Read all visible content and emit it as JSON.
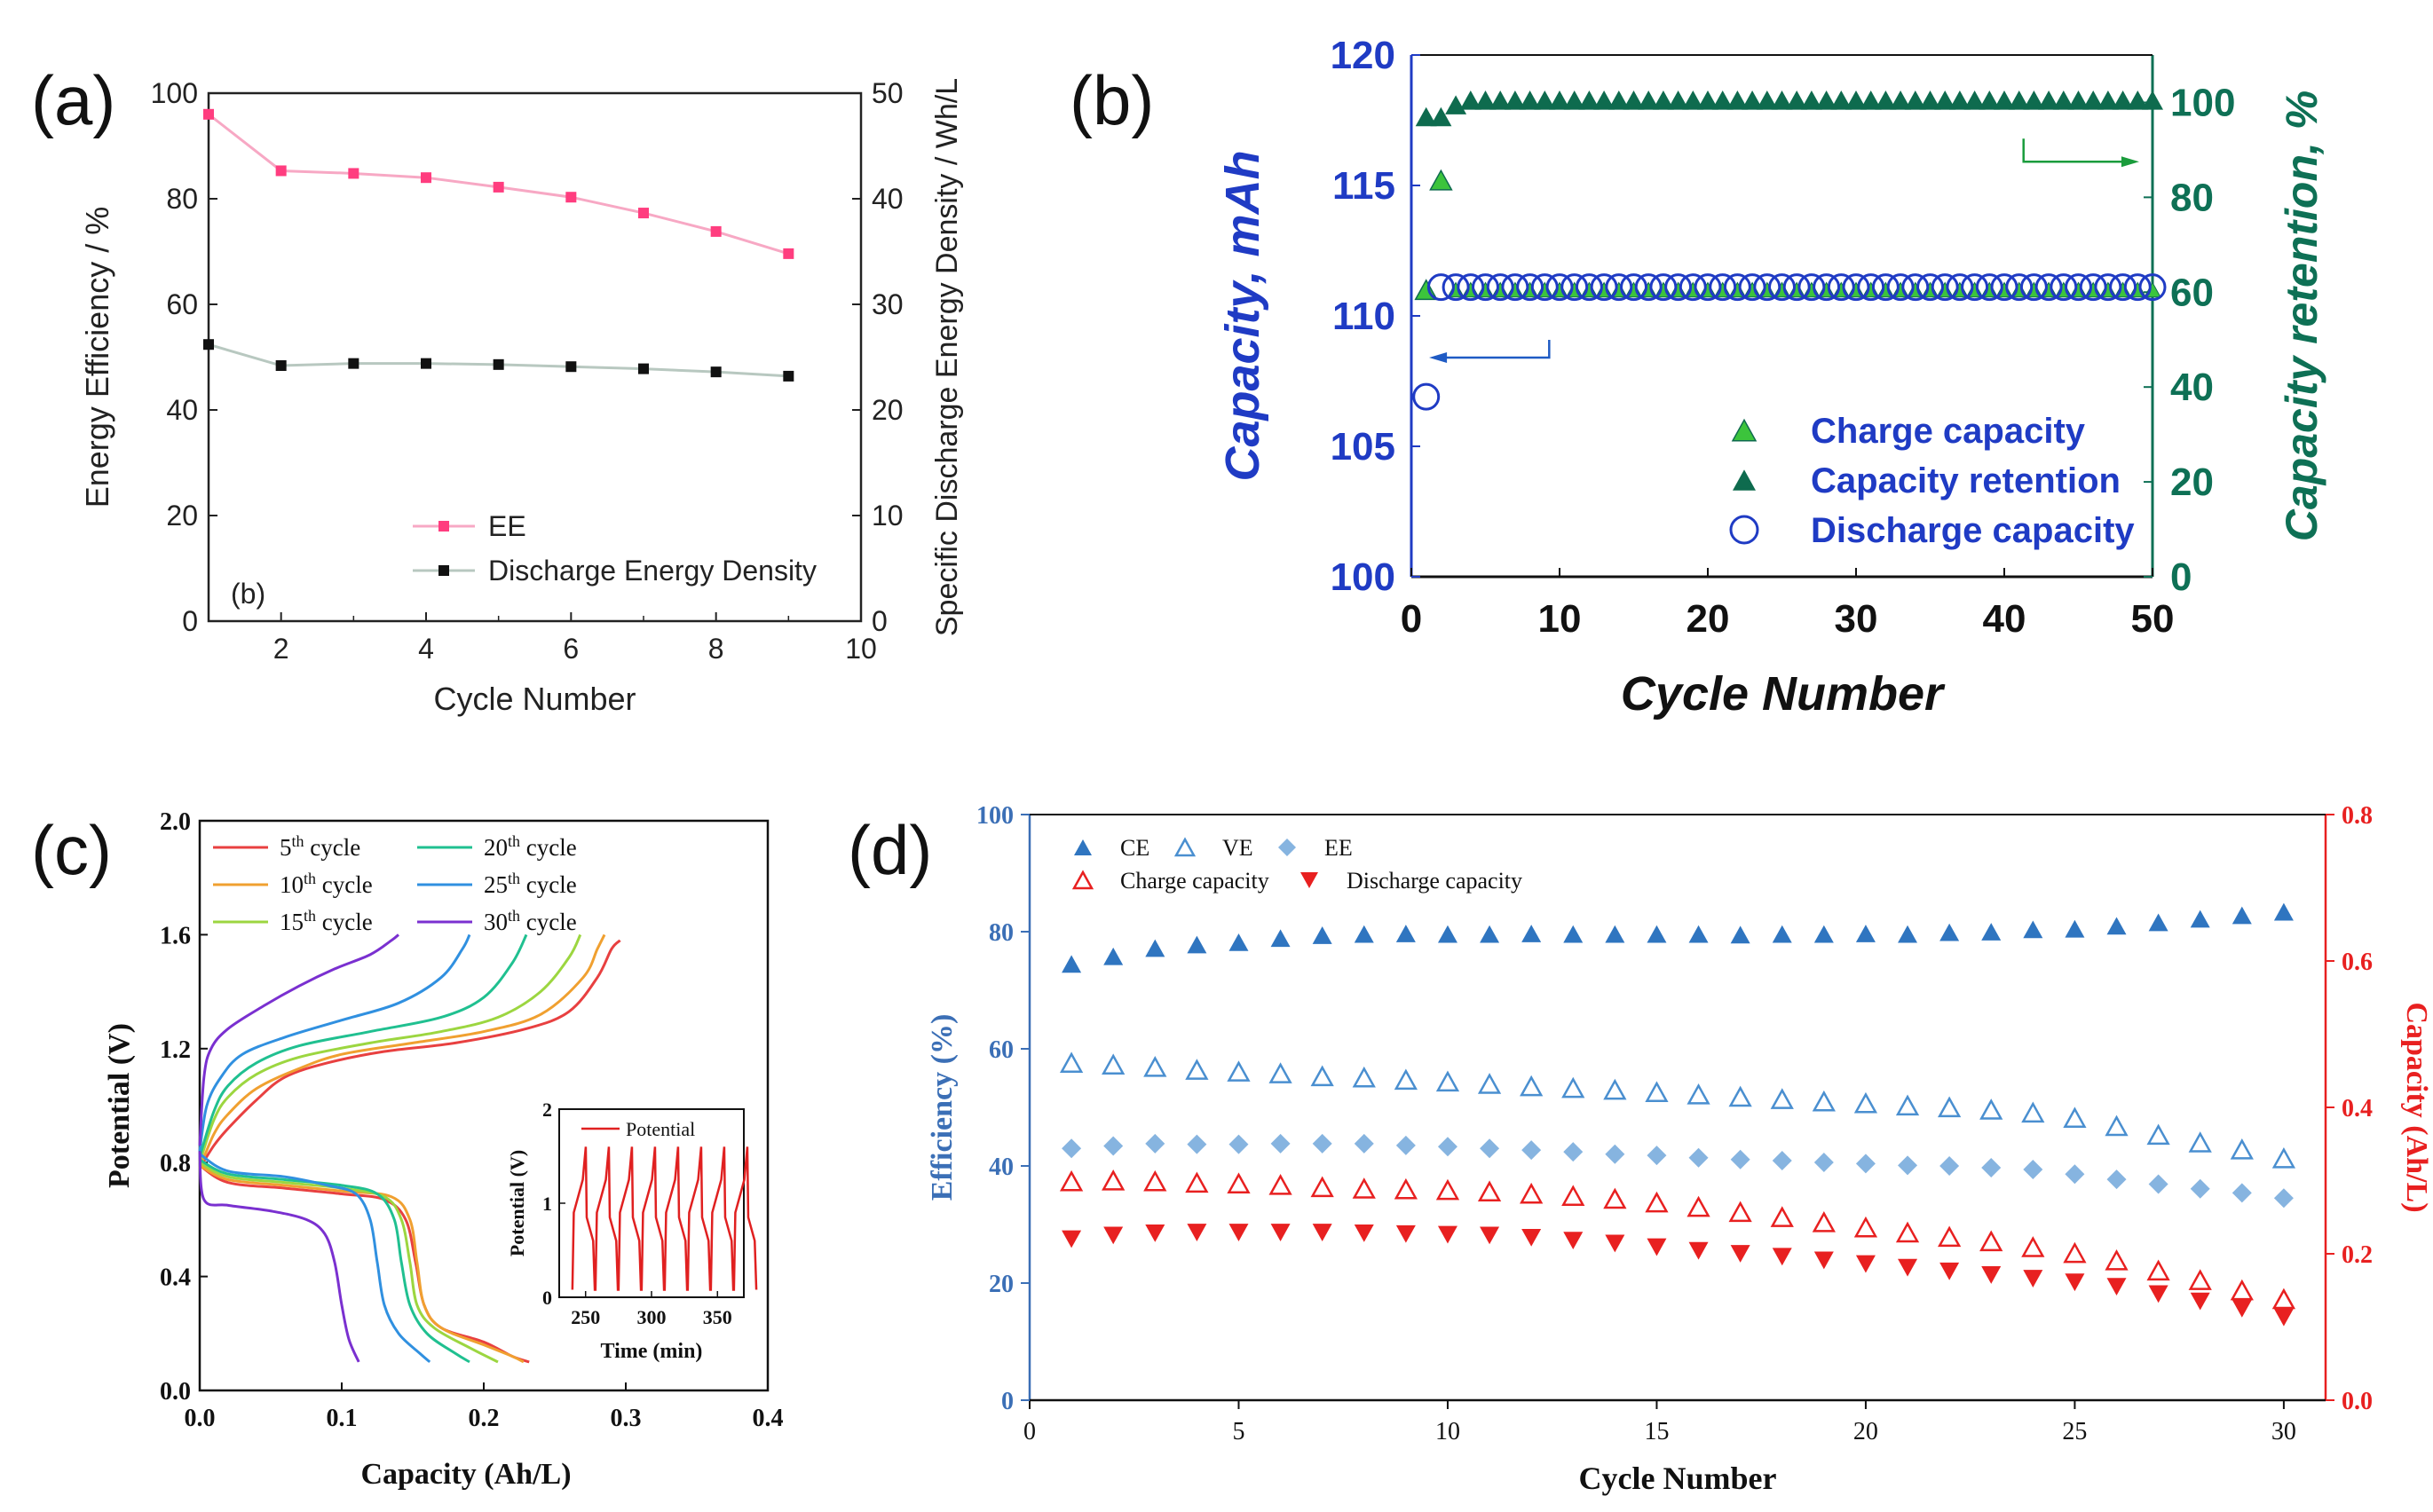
{
  "figure": {
    "panel_labels": [
      "(a)",
      "(b)",
      "(c)",
      "(d)"
    ]
  },
  "chart_data": [
    {
      "id": "a",
      "type": "line",
      "inner_label": "(b)",
      "xlabel": "Cycle Number",
      "ylabel": "Energy Efficiency / %",
      "y2label": "Specific Discharge Energy Density / Wh/L",
      "xlim": [
        1,
        10
      ],
      "ylim": [
        0,
        100
      ],
      "y2lim": [
        0,
        50
      ],
      "xticks": [
        2,
        4,
        6,
        8,
        10
      ],
      "yticks": [
        0,
        20,
        40,
        60,
        80,
        100
      ],
      "y2ticks": [
        0,
        10,
        20,
        30,
        40,
        50
      ],
      "series": [
        {
          "name": "EE",
          "axis": "left",
          "color": "#ff3d7f",
          "line_color": "#f7a8c4",
          "x": [
            1,
            2,
            3,
            4,
            5,
            6,
            7,
            8,
            9
          ],
          "values": [
            96,
            85.3,
            84.8,
            84,
            82.2,
            80.3,
            77.3,
            73.8,
            69.6
          ]
        },
        {
          "name": "Discharge Energy Density",
          "axis": "right",
          "color": "#111111",
          "line_color": "#b8c8c0",
          "x": [
            1,
            2,
            3,
            4,
            5,
            6,
            7,
            8,
            9
          ],
          "values": [
            26.2,
            24.2,
            24.4,
            24.4,
            24.3,
            24.1,
            23.9,
            23.6,
            23.2
          ]
        }
      ]
    },
    {
      "id": "b",
      "type": "scatter",
      "xlabel": "Cycle Number",
      "ylabel": "Capacity, mAh",
      "y2label": "Capacity retention, %",
      "xlim": [
        0,
        50
      ],
      "ylim": [
        100,
        120
      ],
      "y2lim": [
        0,
        110
      ],
      "xticks": [
        0,
        10,
        20,
        30,
        40,
        50
      ],
      "yticks": [
        100,
        105,
        110,
        115,
        120
      ],
      "y2ticks": [
        0,
        20,
        40,
        60,
        80,
        100
      ],
      "colors": {
        "left_axis": "#1f3bc4",
        "right_axis": "#0e7055",
        "charge": "#3cc43c",
        "retention": "#0e6b4e",
        "discharge": "#1f3bc4",
        "arrow_left": "#1f5bc4",
        "arrow_right": "#1a9c3c"
      },
      "series": [
        {
          "name": "Charge capacity",
          "marker": "triangle",
          "axis": "left",
          "points": [
            [
              1,
              111.0
            ],
            [
              2,
              115.2
            ]
          ]
        },
        {
          "name": "Capacity retention",
          "marker": "triangle-filled",
          "axis": "right",
          "x_start": 1,
          "x_end": 50,
          "first_values": [
            97,
            97,
            99.5
          ],
          "rest_value": 100.5
        },
        {
          "name": "Discharge capacity",
          "marker": "circle-open",
          "axis": "left",
          "first_points": [
            [
              1,
              106.9
            ],
            [
              2,
              111.1
            ]
          ],
          "x_start": 3,
          "x_end": 50,
          "rest_value": 111.1
        }
      ],
      "charge_rest": {
        "x_start": 3,
        "x_end": 50,
        "value": 111.0
      }
    },
    {
      "id": "c",
      "type": "line",
      "xlabel": "Capacity (Ah/L)",
      "ylabel": "Potential (V)",
      "xlim": [
        0,
        0.4
      ],
      "ylim": [
        0,
        2.0
      ],
      "xticks": [
        "0.0",
        "0.1",
        "0.2",
        "0.3",
        "0.4"
      ],
      "yticks": [
        "0.0",
        "0.4",
        "0.8",
        "1.2",
        "1.6",
        "2.0"
      ],
      "series": [
        {
          "name": "5th cycle",
          "base": "5",
          "sup": "th",
          "suffix": " cycle",
          "color": "#e84040",
          "charge": [
            [
              0,
              0.78
            ],
            [
              0.01,
              0.86
            ],
            [
              0.02,
              0.92
            ],
            [
              0.04,
              1.02
            ],
            [
              0.06,
              1.1
            ],
            [
              0.09,
              1.15
            ],
            [
              0.13,
              1.19
            ],
            [
              0.18,
              1.22
            ],
            [
              0.23,
              1.27
            ],
            [
              0.26,
              1.33
            ],
            [
              0.28,
              1.45
            ],
            [
              0.29,
              1.55
            ],
            [
              0.296,
              1.58
            ]
          ],
          "discharge": [
            [
              0,
              0.79
            ],
            [
              0.02,
              0.73
            ],
            [
              0.06,
              0.71
            ],
            [
              0.1,
              0.69
            ],
            [
              0.13,
              0.67
            ],
            [
              0.145,
              0.6
            ],
            [
              0.152,
              0.45
            ],
            [
              0.158,
              0.3
            ],
            [
              0.17,
              0.22
            ],
            [
              0.2,
              0.17
            ],
            [
              0.22,
              0.12
            ],
            [
              0.232,
              0.1
            ]
          ]
        },
        {
          "name": "10th cycle",
          "base": "10",
          "sup": "th",
          "suffix": " cycle",
          "color": "#f0a030",
          "charge": [
            [
              0,
              0.78
            ],
            [
              0.01,
              0.9
            ],
            [
              0.02,
              0.97
            ],
            [
              0.04,
              1.06
            ],
            [
              0.07,
              1.13
            ],
            [
              0.1,
              1.18
            ],
            [
              0.15,
              1.22
            ],
            [
              0.2,
              1.26
            ],
            [
              0.24,
              1.32
            ],
            [
              0.27,
              1.45
            ],
            [
              0.28,
              1.55
            ],
            [
              0.285,
              1.6
            ]
          ],
          "discharge": [
            [
              0,
              0.79
            ],
            [
              0.02,
              0.74
            ],
            [
              0.06,
              0.72
            ],
            [
              0.1,
              0.7
            ],
            [
              0.135,
              0.68
            ],
            [
              0.148,
              0.6
            ],
            [
              0.153,
              0.45
            ],
            [
              0.158,
              0.3
            ],
            [
              0.17,
              0.22
            ],
            [
              0.2,
              0.16
            ],
            [
              0.22,
              0.12
            ],
            [
              0.228,
              0.1
            ]
          ]
        },
        {
          "name": "15th cycle",
          "base": "15",
          "sup": "th",
          "suffix": " cycle",
          "color": "#9cd640",
          "charge": [
            [
              0,
              0.8
            ],
            [
              0.01,
              0.95
            ],
            [
              0.02,
              1.03
            ],
            [
              0.04,
              1.11
            ],
            [
              0.07,
              1.17
            ],
            [
              0.12,
              1.22
            ],
            [
              0.17,
              1.26
            ],
            [
              0.21,
              1.31
            ],
            [
              0.24,
              1.4
            ],
            [
              0.26,
              1.52
            ],
            [
              0.268,
              1.6
            ]
          ],
          "discharge": [
            [
              0,
              0.8
            ],
            [
              0.02,
              0.75
            ],
            [
              0.06,
              0.73
            ],
            [
              0.1,
              0.71
            ],
            [
              0.13,
              0.68
            ],
            [
              0.142,
              0.6
            ],
            [
              0.148,
              0.45
            ],
            [
              0.153,
              0.3
            ],
            [
              0.165,
              0.22
            ],
            [
              0.19,
              0.15
            ],
            [
              0.21,
              0.1
            ]
          ]
        },
        {
          "name": "20th cycle",
          "base": "20",
          "sup": "th",
          "suffix": " cycle",
          "color": "#20c090",
          "charge": [
            [
              0,
              0.82
            ],
            [
              0.01,
              0.98
            ],
            [
              0.02,
              1.07
            ],
            [
              0.04,
              1.15
            ],
            [
              0.07,
              1.21
            ],
            [
              0.12,
              1.26
            ],
            [
              0.17,
              1.31
            ],
            [
              0.2,
              1.38
            ],
            [
              0.22,
              1.5
            ],
            [
              0.23,
              1.6
            ]
          ],
          "discharge": [
            [
              0,
              0.81
            ],
            [
              0.02,
              0.76
            ],
            [
              0.06,
              0.74
            ],
            [
              0.1,
              0.72
            ],
            [
              0.125,
              0.69
            ],
            [
              0.137,
              0.6
            ],
            [
              0.142,
              0.45
            ],
            [
              0.148,
              0.3
            ],
            [
              0.16,
              0.2
            ],
            [
              0.18,
              0.13
            ],
            [
              0.19,
              0.1
            ]
          ]
        },
        {
          "name": "25th cycle",
          "base": "25",
          "sup": "th",
          "suffix": " cycle",
          "color": "#3090e0",
          "charge": [
            [
              0,
              0.84
            ],
            [
              0.005,
              1.0
            ],
            [
              0.015,
              1.1
            ],
            [
              0.03,
              1.18
            ],
            [
              0.06,
              1.24
            ],
            [
              0.1,
              1.3
            ],
            [
              0.14,
              1.36
            ],
            [
              0.17,
              1.45
            ],
            [
              0.185,
              1.55
            ],
            [
              0.19,
              1.6
            ]
          ],
          "discharge": [
            [
              0,
              0.83
            ],
            [
              0.02,
              0.77
            ],
            [
              0.06,
              0.75
            ],
            [
              0.09,
              0.72
            ],
            [
              0.11,
              0.69
            ],
            [
              0.12,
              0.6
            ],
            [
              0.125,
              0.45
            ],
            [
              0.13,
              0.3
            ],
            [
              0.14,
              0.2
            ],
            [
              0.155,
              0.13
            ],
            [
              0.162,
              0.1
            ]
          ]
        },
        {
          "name": "30th cycle",
          "base": "30",
          "sup": "th",
          "suffix": " cycle",
          "color": "#7a30d0",
          "charge": [
            [
              0,
              0.86
            ],
            [
              0.003,
              1.1
            ],
            [
              0.008,
              1.2
            ],
            [
              0.02,
              1.27
            ],
            [
              0.045,
              1.35
            ],
            [
              0.07,
              1.42
            ],
            [
              0.095,
              1.48
            ],
            [
              0.12,
              1.53
            ],
            [
              0.135,
              1.58
            ],
            [
              0.14,
              1.6
            ]
          ],
          "discharge": [
            [
              0,
              0.84
            ],
            [
              0.003,
              0.67
            ],
            [
              0.02,
              0.65
            ],
            [
              0.05,
              0.63
            ],
            [
              0.075,
              0.6
            ],
            [
              0.088,
              0.55
            ],
            [
              0.095,
              0.45
            ],
            [
              0.1,
              0.3
            ],
            [
              0.105,
              0.18
            ],
            [
              0.112,
              0.1
            ]
          ]
        }
      ],
      "inset": {
        "xlabel": "Time (min)",
        "ylabel": "Potential (V)",
        "legend": "Potential",
        "color": "#e02020",
        "xlim": [
          230,
          370
        ],
        "ylim": [
          0,
          2
        ],
        "xticks": [
          250,
          300,
          350
        ],
        "yticks": [
          0,
          1,
          2
        ],
        "start": 240,
        "end": 367,
        "period": 17.5,
        "vmin": 0.08,
        "vmax": 1.6
      }
    },
    {
      "id": "d",
      "type": "scatter",
      "xlabel": "Cycle Number",
      "ylabel": "Efficiency (%)",
      "y2label": "Capacity (Ah/L)",
      "xlim": [
        0,
        31
      ],
      "ylim": [
        0,
        100
      ],
      "y2lim": [
        0,
        0.8
      ],
      "xticks": [
        0,
        5,
        10,
        15,
        20,
        25,
        30
      ],
      "yticks": [
        0,
        20,
        40,
        60,
        80,
        100
      ],
      "y2ticks": [
        "0.0",
        "0.2",
        "0.4",
        "0.6",
        "0.8"
      ],
      "colors": {
        "left_axis": "#3b6fb6",
        "right_axis": "#e82020"
      },
      "x": [
        1,
        2,
        3,
        4,
        5,
        6,
        7,
        8,
        9,
        10,
        11,
        12,
        13,
        14,
        15,
        16,
        17,
        18,
        19,
        20,
        21,
        22,
        23,
        24,
        25,
        26,
        27,
        28,
        29,
        30
      ],
      "series": [
        {
          "name": "CE",
          "marker": "triangle-filled",
          "color": "#2f75c0",
          "axis": "left",
          "values": [
            74.5,
            75.8,
            77.2,
            77.8,
            78.2,
            78.9,
            79.4,
            79.6,
            79.7,
            79.6,
            79.6,
            79.7,
            79.6,
            79.6,
            79.6,
            79.6,
            79.5,
            79.6,
            79.6,
            79.7,
            79.6,
            79.9,
            80.0,
            80.4,
            80.5,
            81.0,
            81.6,
            82.2,
            82.8,
            83.4
          ]
        },
        {
          "name": "VE",
          "marker": "triangle-open",
          "color": "#4a8fd0",
          "axis": "left",
          "values": [
            57.6,
            57.3,
            56.9,
            56.4,
            56.1,
            55.8,
            55.3,
            55.1,
            54.7,
            54.4,
            54.0,
            53.6,
            53.3,
            53.0,
            52.6,
            52.2,
            51.8,
            51.4,
            51.0,
            50.7,
            50.3,
            50.0,
            49.6,
            49.1,
            48.2,
            46.8,
            45.3,
            44.0,
            42.8,
            41.3
          ]
        },
        {
          "name": "EE",
          "marker": "diamond",
          "color": "#86b4e0",
          "axis": "left",
          "values": [
            43.0,
            43.4,
            43.8,
            43.7,
            43.7,
            43.8,
            43.8,
            43.8,
            43.5,
            43.3,
            43.0,
            42.7,
            42.4,
            42.0,
            41.8,
            41.4,
            41.1,
            40.9,
            40.6,
            40.4,
            40.1,
            40.0,
            39.7,
            39.4,
            38.6,
            37.7,
            36.9,
            36.1,
            35.4,
            34.5
          ]
        },
        {
          "name": "Charge capacity",
          "marker": "triangle-open",
          "color": "#e82020",
          "axis": "right",
          "values": [
            0.299,
            0.3,
            0.299,
            0.297,
            0.296,
            0.294,
            0.291,
            0.289,
            0.288,
            0.287,
            0.285,
            0.282,
            0.279,
            0.275,
            0.27,
            0.264,
            0.257,
            0.25,
            0.243,
            0.236,
            0.229,
            0.223,
            0.217,
            0.209,
            0.201,
            0.191,
            0.177,
            0.164,
            0.15,
            0.138
          ]
        },
        {
          "name": "Discharge capacity",
          "marker": "triangle-down",
          "color": "#e82020",
          "axis": "right",
          "values": [
            0.22,
            0.225,
            0.228,
            0.229,
            0.229,
            0.229,
            0.229,
            0.228,
            0.227,
            0.226,
            0.225,
            0.222,
            0.218,
            0.214,
            0.209,
            0.204,
            0.2,
            0.196,
            0.191,
            0.186,
            0.181,
            0.176,
            0.171,
            0.166,
            0.161,
            0.155,
            0.145,
            0.135,
            0.125,
            0.113
          ]
        }
      ]
    }
  ]
}
